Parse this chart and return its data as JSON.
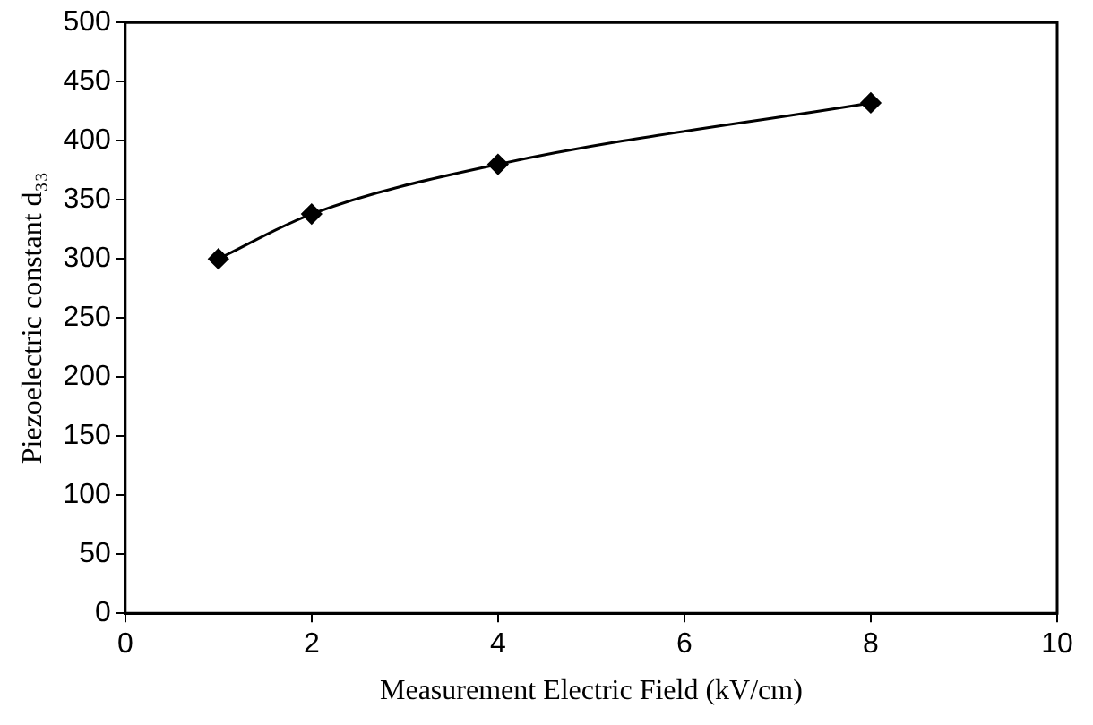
{
  "chart_data": {
    "type": "line",
    "xlabel": "Measurement Electric Field (kV/cm)",
    "ylabel": "Piezoelectric constant d₃₃",
    "x": [
      1,
      2,
      4,
      8
    ],
    "series": [
      {
        "color": "#000000",
        "values": [
          300,
          338,
          380,
          432
        ]
      }
    ],
    "xlim": [
      0,
      10
    ],
    "xticks": [
      0,
      2,
      4,
      6,
      8,
      10
    ],
    "ylim": [
      0,
      500
    ],
    "yticks": [
      0,
      50,
      100,
      150,
      200,
      250,
      300,
      350,
      400,
      450,
      500
    ],
    "grid": false,
    "legend": false,
    "marker": "diamond",
    "line_style": "solid"
  }
}
